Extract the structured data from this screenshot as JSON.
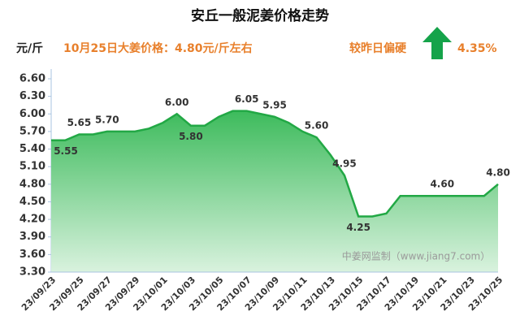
{
  "chart_data": {
    "type": "area",
    "title": "安丘一般泥姜价格走势",
    "unit": "元/斤",
    "headline": "10月25日大姜价格：4.80元/斤左右",
    "trend_text": "较昨日偏硬",
    "change": "4.35%",
    "watermark": "中姜网监制（www.jiang7.com）",
    "categories": [
      "23/09/23",
      null,
      "23/09/25",
      null,
      "23/09/27",
      null,
      "23/09/29",
      null,
      "23/10/01",
      null,
      "23/10/03",
      null,
      "23/10/05",
      null,
      "23/10/07",
      null,
      "23/10/09",
      null,
      "23/10/11",
      null,
      "23/10/13",
      null,
      "23/10/15",
      null,
      "23/10/17",
      null,
      "23/10/19",
      null,
      "23/10/21",
      null,
      "23/10/23",
      null,
      "23/10/25"
    ],
    "values": [
      5.55,
      5.55,
      5.65,
      5.65,
      5.7,
      5.7,
      5.7,
      5.75,
      5.85,
      6.0,
      5.8,
      5.8,
      5.95,
      6.05,
      6.05,
      6.0,
      5.95,
      5.85,
      5.7,
      5.6,
      5.3,
      4.95,
      4.25,
      4.25,
      4.3,
      4.6,
      4.6,
      4.6,
      4.6,
      4.6,
      4.6,
      4.6,
      4.8
    ],
    "value_labels": [
      "5.55",
      null,
      "5.65",
      null,
      "5.70",
      null,
      null,
      null,
      null,
      "6.00",
      "5.80",
      null,
      null,
      null,
      "6.05",
      null,
      "5.95",
      null,
      null,
      "5.60",
      null,
      "4.95",
      "4.25",
      null,
      null,
      null,
      null,
      null,
      "4.60",
      null,
      null,
      null,
      "4.80"
    ],
    "color": "#22a845",
    "ylim": [
      3.3,
      6.6
    ],
    "yticks": [
      {
        "value": 3.3,
        "label": "3.30"
      },
      {
        "value": 3.6,
        "label": "3.60"
      },
      {
        "value": 3.9,
        "label": "3.90"
      },
      {
        "value": 4.2,
        "label": "4.20"
      },
      {
        "value": 4.5,
        "label": "4.50"
      },
      {
        "value": 4.8,
        "label": "4.80"
      },
      {
        "value": 5.1,
        "label": "5.10"
      },
      {
        "value": 5.4,
        "label": "5.40"
      },
      {
        "value": 5.7,
        "label": "5.70"
      },
      {
        "value": 6.0,
        "label": "6.00"
      },
      {
        "value": 6.3,
        "label": "6.30"
      },
      {
        "value": 6.6,
        "label": "6.60"
      }
    ]
  }
}
